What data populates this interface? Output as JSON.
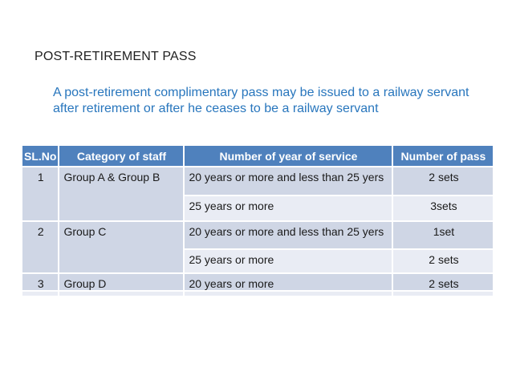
{
  "slide": {
    "title": "POST-RETIREMENT PASS",
    "subtitle": {
      "lines": [
        "A post-retirement complimentary pass may be issued to a railway servant",
        "after retirement or after he ceases to be a railway servant"
      ]
    }
  },
  "colors": {
    "header_bg": "#4F81BD",
    "header_text": "#FFFFFF",
    "band_dark": "#CFD6E5",
    "band_light": "#E9ECF4",
    "title_text": "#1F1F1F",
    "subtitle_text": "#2876BD",
    "background": "#FFFFFF"
  },
  "table": {
    "headers": [
      "SL.No",
      "Category of staff",
      "Number of year of service",
      "Number of pass"
    ],
    "rows": [
      {
        "sl": "1",
        "category": "Group A & Group B",
        "service": "20 years or more and less than 25 yers",
        "passes": "2 sets"
      },
      {
        "service": "25 years or more",
        "passes": "3sets"
      },
      {
        "sl": "2",
        "category": "Group C",
        "service": "20 years or more and less than 25 yers",
        "passes": "1set"
      },
      {
        "service": "25 years or more",
        "passes": "2 sets"
      },
      {
        "sl": "3",
        "category": "Group D",
        "service": "20 years or more",
        "passes": "2 sets"
      }
    ]
  }
}
